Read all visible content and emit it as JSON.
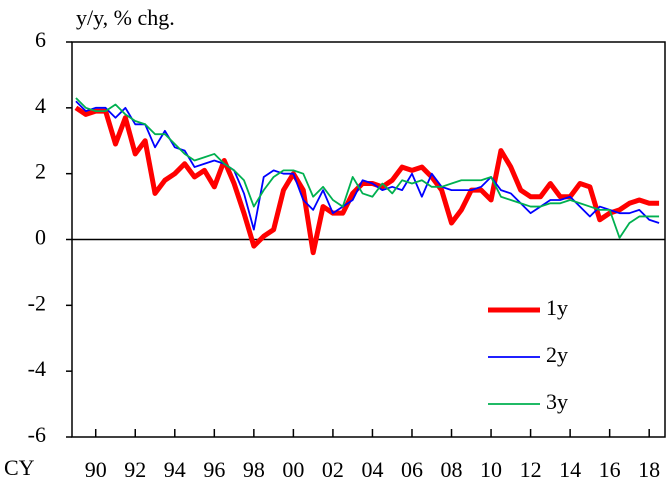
{
  "chart_data": {
    "type": "line",
    "y_axis_label": "y/y, % chg.",
    "x_axis_label": "CY",
    "x": [
      1989,
      1989.5,
      1990,
      1990.5,
      1991,
      1991.5,
      1992,
      1992.5,
      1993,
      1993.5,
      1994,
      1994.5,
      1995,
      1995.5,
      1996,
      1996.5,
      1997,
      1997.5,
      1998,
      1998.5,
      1999,
      1999.5,
      2000,
      2000.5,
      2001,
      2001.5,
      2002,
      2002.5,
      2003,
      2003.5,
      2004,
      2004.5,
      2005,
      2005.5,
      2006,
      2006.5,
      2007,
      2007.5,
      2008,
      2008.5,
      2009,
      2009.5,
      2010,
      2010.5,
      2011,
      2011.5,
      2012,
      2012.5,
      2013,
      2013.5,
      2014,
      2014.5,
      2015,
      2015.5,
      2016,
      2016.5,
      2017,
      2017.5,
      2018,
      2018.5
    ],
    "series": [
      {
        "name": "1y",
        "color": "#ff0000",
        "width": 5,
        "values": [
          4.0,
          3.8,
          3.9,
          3.9,
          2.9,
          3.7,
          2.6,
          3.0,
          1.4,
          1.8,
          2.0,
          2.3,
          1.9,
          2.1,
          1.6,
          2.4,
          1.7,
          0.8,
          -0.2,
          0.1,
          0.3,
          1.5,
          2.0,
          1.5,
          -0.4,
          1.0,
          0.8,
          0.8,
          1.4,
          1.7,
          1.7,
          1.6,
          1.8,
          2.2,
          2.1,
          2.2,
          1.9,
          1.5,
          0.5,
          0.9,
          1.5,
          1.5,
          1.2,
          2.7,
          2.2,
          1.5,
          1.3,
          1.3,
          1.7,
          1.3,
          1.3,
          1.7,
          1.6,
          0.6,
          0.8,
          0.9,
          1.1,
          1.2,
          1.1,
          1.1
        ]
      },
      {
        "name": "2y",
        "color": "#0000ff",
        "width": 1.8,
        "values": [
          4.2,
          3.9,
          4.0,
          4.0,
          3.7,
          4.0,
          3.5,
          3.5,
          2.8,
          3.3,
          2.8,
          2.7,
          2.2,
          2.3,
          2.4,
          2.3,
          2.1,
          1.4,
          0.3,
          1.9,
          2.1,
          2.0,
          2.0,
          1.2,
          0.9,
          1.5,
          0.8,
          1.0,
          1.2,
          1.8,
          1.7,
          1.5,
          1.6,
          1.5,
          2.0,
          1.3,
          2.0,
          1.6,
          1.5,
          1.5,
          1.5,
          1.6,
          1.9,
          1.5,
          1.4,
          1.1,
          0.8,
          1.0,
          1.2,
          1.2,
          1.3,
          1.0,
          0.7,
          1.0,
          0.9,
          0.8,
          0.8,
          0.9,
          0.6,
          0.5
        ]
      },
      {
        "name": "3y",
        "color": "#00b050",
        "width": 1.8,
        "values": [
          4.3,
          4.0,
          3.9,
          3.9,
          4.1,
          3.8,
          3.6,
          3.5,
          3.2,
          3.2,
          2.9,
          2.6,
          2.4,
          2.5,
          2.6,
          2.3,
          2.1,
          1.8,
          1.0,
          1.5,
          1.9,
          2.1,
          2.1,
          2.0,
          1.3,
          1.6,
          1.2,
          1.0,
          1.9,
          1.4,
          1.3,
          1.7,
          1.4,
          1.8,
          1.7,
          1.8,
          1.6,
          1.6,
          1.7,
          1.8,
          1.8,
          1.8,
          1.9,
          1.3,
          1.2,
          1.1,
          1.0,
          1.0,
          1.1,
          1.1,
          1.2,
          1.1,
          1.0,
          0.9,
          0.9,
          0.05,
          0.5,
          0.7,
          0.7,
          0.7
        ]
      }
    ],
    "xlim": [
      1988.8,
      2018.8
    ],
    "xticks": [
      {
        "value": 1990,
        "label": "90"
      },
      {
        "value": 1992,
        "label": "92"
      },
      {
        "value": 1994,
        "label": "94"
      },
      {
        "value": 1996,
        "label": "96"
      },
      {
        "value": 1998,
        "label": "98"
      },
      {
        "value": 2000,
        "label": "00"
      },
      {
        "value": 2002,
        "label": "02"
      },
      {
        "value": 2004,
        "label": "04"
      },
      {
        "value": 2006,
        "label": "06"
      },
      {
        "value": 2008,
        "label": "08"
      },
      {
        "value": 2010,
        "label": "10"
      },
      {
        "value": 2012,
        "label": "12"
      },
      {
        "value": 2014,
        "label": "14"
      },
      {
        "value": 2016,
        "label": "16"
      },
      {
        "value": 2018,
        "label": "18"
      }
    ],
    "ylim": [
      -6,
      6
    ],
    "yticks": [
      -6,
      -4,
      -2,
      0,
      2,
      4,
      6
    ],
    "zero_line": true,
    "grid": false,
    "legend": "lower right"
  }
}
